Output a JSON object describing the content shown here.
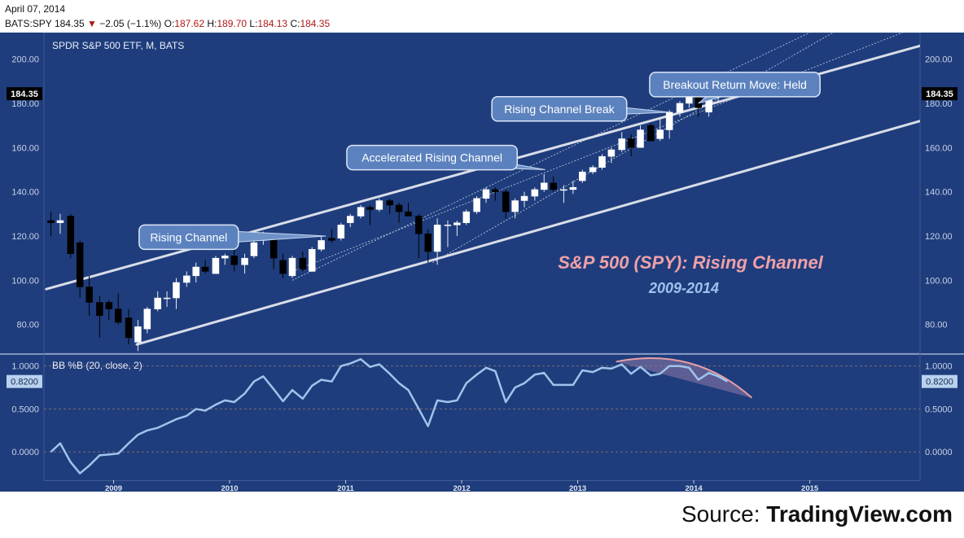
{
  "header": {
    "date": "April 07, 2014",
    "symbol": "BATS:SPY",
    "last": "184.35",
    "change": "−2.05 (−1.1%)",
    "open_label": "O:",
    "open": "187.62",
    "high_label": "H:",
    "high": "189.70",
    "low_label": "L:",
    "low": "184.13",
    "close_label": "C:",
    "close": "184.35"
  },
  "source": {
    "prefix": "Source: ",
    "name": "TradingView.com"
  },
  "colors": {
    "background": "#1f3d7c",
    "up_candle": "#ffffff",
    "down_candle": "#000000",
    "channel": "#d9dde8",
    "indicator_line": "#9fc4ec",
    "arc": "#e8a0a6",
    "title_pink": "#f0a0a8",
    "subtitle_blue": "#9cc3ee"
  },
  "chart_data": [
    {
      "type": "candlestick",
      "title": "SPDR S&P 500 ETF, M, BATS",
      "y_ticks": [
        "80.00",
        "100.00",
        "120.00",
        "140.00",
        "160.00",
        "180.00",
        "200.00"
      ],
      "ylim": [
        67,
        212
      ],
      "x_ticks": [
        "2009",
        "2010",
        "2011",
        "2012",
        "2013",
        "2014",
        "2015"
      ],
      "xlim": [
        2008.4,
        2015.95
      ],
      "last_price_label": "184.35",
      "candles": [
        {
          "t": 2008.46,
          "o": 127,
          "h": 131,
          "l": 120,
          "c": 126
        },
        {
          "t": 2008.54,
          "o": 126,
          "h": 130,
          "l": 121,
          "c": 127
        },
        {
          "t": 2008.63,
          "o": 129,
          "h": 130,
          "l": 110,
          "c": 112
        },
        {
          "t": 2008.71,
          "o": 117,
          "h": 118,
          "l": 92,
          "c": 97
        },
        {
          "t": 2008.79,
          "o": 97,
          "h": 102,
          "l": 84,
          "c": 90
        },
        {
          "t": 2008.88,
          "o": 90,
          "h": 93,
          "l": 74,
          "c": 84
        },
        {
          "t": 2008.96,
          "o": 90,
          "h": 91,
          "l": 82,
          "c": 87
        },
        {
          "t": 2009.04,
          "o": 87,
          "h": 94,
          "l": 80,
          "c": 81
        },
        {
          "t": 2009.13,
          "o": 83,
          "h": 87,
          "l": 71,
          "c": 74
        },
        {
          "t": 2009.21,
          "o": 72,
          "h": 82,
          "l": 68,
          "c": 79
        },
        {
          "t": 2009.29,
          "o": 78,
          "h": 88,
          "l": 76,
          "c": 87
        },
        {
          "t": 2009.38,
          "o": 87,
          "h": 95,
          "l": 86,
          "c": 92
        },
        {
          "t": 2009.46,
          "o": 92,
          "h": 95,
          "l": 88,
          "c": 92
        },
        {
          "t": 2009.54,
          "o": 92,
          "h": 101,
          "l": 87,
          "c": 99
        },
        {
          "t": 2009.63,
          "o": 99,
          "h": 104,
          "l": 97,
          "c": 102
        },
        {
          "t": 2009.71,
          "o": 102,
          "h": 108,
          "l": 99,
          "c": 106
        },
        {
          "t": 2009.79,
          "o": 106,
          "h": 109,
          "l": 103,
          "c": 104
        },
        {
          "t": 2009.88,
          "o": 103,
          "h": 111,
          "l": 103,
          "c": 110
        },
        {
          "t": 2009.96,
          "o": 110,
          "h": 112,
          "l": 107,
          "c": 111
        },
        {
          "t": 2010.04,
          "o": 111,
          "h": 115,
          "l": 104,
          "c": 107
        },
        {
          "t": 2010.13,
          "o": 107,
          "h": 112,
          "l": 103,
          "c": 110
        },
        {
          "t": 2010.21,
          "o": 111,
          "h": 118,
          "l": 110,
          "c": 117
        },
        {
          "t": 2010.29,
          "o": 118,
          "h": 122,
          "l": 116,
          "c": 119
        },
        {
          "t": 2010.38,
          "o": 119,
          "h": 121,
          "l": 105,
          "c": 110
        },
        {
          "t": 2010.46,
          "o": 109,
          "h": 112,
          "l": 101,
          "c": 103
        },
        {
          "t": 2010.54,
          "o": 102,
          "h": 111,
          "l": 101,
          "c": 110
        },
        {
          "t": 2010.63,
          "o": 110,
          "h": 113,
          "l": 104,
          "c": 105
        },
        {
          "t": 2010.71,
          "o": 104,
          "h": 115,
          "l": 104,
          "c": 114
        },
        {
          "t": 2010.79,
          "o": 114,
          "h": 120,
          "l": 113,
          "c": 118
        },
        {
          "t": 2010.88,
          "o": 119,
          "h": 123,
          "l": 117,
          "c": 118
        },
        {
          "t": 2010.96,
          "o": 119,
          "h": 126,
          "l": 118,
          "c": 125
        },
        {
          "t": 2011.04,
          "o": 126,
          "h": 130,
          "l": 124,
          "c": 129
        },
        {
          "t": 2011.13,
          "o": 129,
          "h": 134,
          "l": 128,
          "c": 133
        },
        {
          "t": 2011.21,
          "o": 133,
          "h": 134,
          "l": 125,
          "c": 132
        },
        {
          "t": 2011.29,
          "o": 132,
          "h": 137,
          "l": 131,
          "c": 136
        },
        {
          "t": 2011.38,
          "o": 136,
          "h": 137,
          "l": 130,
          "c": 134
        },
        {
          "t": 2011.46,
          "o": 134,
          "h": 135,
          "l": 126,
          "c": 131
        },
        {
          "t": 2011.54,
          "o": 131,
          "h": 135,
          "l": 129,
          "c": 129
        },
        {
          "t": 2011.63,
          "o": 129,
          "h": 130,
          "l": 110,
          "c": 121
        },
        {
          "t": 2011.71,
          "o": 121,
          "h": 123,
          "l": 108,
          "c": 113
        },
        {
          "t": 2011.79,
          "o": 113,
          "h": 128,
          "l": 107,
          "c": 125
        },
        {
          "t": 2011.88,
          "o": 125,
          "h": 127,
          "l": 115,
          "c": 125
        },
        {
          "t": 2011.96,
          "o": 125,
          "h": 127,
          "l": 120,
          "c": 126
        },
        {
          "t": 2012.04,
          "o": 126,
          "h": 132,
          "l": 125,
          "c": 131
        },
        {
          "t": 2012.13,
          "o": 131,
          "h": 138,
          "l": 130,
          "c": 137
        },
        {
          "t": 2012.21,
          "o": 137,
          "h": 142,
          "l": 135,
          "c": 141
        },
        {
          "t": 2012.29,
          "o": 141,
          "h": 142,
          "l": 136,
          "c": 140
        },
        {
          "t": 2012.38,
          "o": 140,
          "h": 141,
          "l": 128,
          "c": 131
        },
        {
          "t": 2012.46,
          "o": 131,
          "h": 137,
          "l": 128,
          "c": 136
        },
        {
          "t": 2012.54,
          "o": 136,
          "h": 140,
          "l": 133,
          "c": 138
        },
        {
          "t": 2012.63,
          "o": 138,
          "h": 142,
          "l": 136,
          "c": 141
        },
        {
          "t": 2012.71,
          "o": 141,
          "h": 148,
          "l": 140,
          "c": 144
        },
        {
          "t": 2012.79,
          "o": 144,
          "h": 147,
          "l": 140,
          "c": 141
        },
        {
          "t": 2012.88,
          "o": 141,
          "h": 143,
          "l": 135,
          "c": 141
        },
        {
          "t": 2012.96,
          "o": 141,
          "h": 145,
          "l": 139,
          "c": 142
        },
        {
          "t": 2013.04,
          "o": 145,
          "h": 150,
          "l": 144,
          "c": 149
        },
        {
          "t": 2013.13,
          "o": 149,
          "h": 152,
          "l": 148,
          "c": 151
        },
        {
          "t": 2013.21,
          "o": 151,
          "h": 157,
          "l": 150,
          "c": 156
        },
        {
          "t": 2013.29,
          "o": 156,
          "h": 160,
          "l": 153,
          "c": 159
        },
        {
          "t": 2013.38,
          "o": 159,
          "h": 167,
          "l": 158,
          "c": 164
        },
        {
          "t": 2013.46,
          "o": 164,
          "h": 166,
          "l": 156,
          "c": 160
        },
        {
          "t": 2013.54,
          "o": 160,
          "h": 170,
          "l": 160,
          "c": 168
        },
        {
          "t": 2013.63,
          "o": 170,
          "h": 171,
          "l": 163,
          "c": 163
        },
        {
          "t": 2013.71,
          "o": 164,
          "h": 173,
          "l": 163,
          "c": 168
        },
        {
          "t": 2013.79,
          "o": 168,
          "h": 177,
          "l": 164,
          "c": 176
        },
        {
          "t": 2013.88,
          "o": 176,
          "h": 181,
          "l": 174,
          "c": 180
        },
        {
          "t": 2013.96,
          "o": 180,
          "h": 185,
          "l": 178,
          "c": 184
        },
        {
          "t": 2014.04,
          "o": 183,
          "h": 185,
          "l": 174,
          "c": 178
        },
        {
          "t": 2014.13,
          "o": 176,
          "h": 186,
          "l": 174,
          "c": 186
        },
        {
          "t": 2014.21,
          "o": 186,
          "h": 189,
          "l": 181,
          "c": 188
        },
        {
          "t": 2014.29,
          "o": 188,
          "h": 190,
          "l": 184,
          "c": 184
        }
      ],
      "channel_lines": [
        {
          "name": "upper",
          "from": [
            2008.42,
            96
          ],
          "to": [
            2015.95,
            206
          ]
        },
        {
          "name": "lower",
          "from": [
            2009.2,
            71
          ],
          "to": [
            2015.95,
            172
          ]
        }
      ],
      "dotted_lines": [
        {
          "from": [
            2010.54,
            100
          ],
          "to": [
            2015.0,
            212
          ]
        },
        {
          "from": [
            2010.54,
            104
          ],
          "to": [
            2015.8,
            212
          ]
        },
        {
          "from": [
            2011.75,
            108
          ],
          "to": [
            2015.2,
            212
          ]
        }
      ],
      "annotations": [
        {
          "text": "Rising Channel",
          "box": [
            2009.22,
            125
          ],
          "target": [
            2010.83,
            120
          ]
        },
        {
          "text": "Accelerated Rising Channel",
          "box": [
            2011.01,
            161
          ],
          "target": [
            2012.72,
            150
          ]
        },
        {
          "text": "Rising Channel Break",
          "box": [
            2012.26,
            183
          ],
          "target": [
            2013.79,
            176
          ]
        },
        {
          "text": "Breakout Return Move: Held",
          "box": [
            2013.62,
            194
          ],
          "target": [
            2014.04,
            180
          ]
        }
      ],
      "overlay_title": "S&P 500 (SPY): Rising Channel",
      "overlay_subtitle": "2009-2014"
    },
    {
      "type": "line",
      "title": "BB %B (20, close, 2)",
      "y_ticks": [
        "0.0000",
        "0.5000",
        "1.0000"
      ],
      "ylim": [
        -0.33,
        1.13
      ],
      "last_value_label": "0.8200",
      "series": [
        {
          "x": [
            2008.46,
            2008.54,
            2008.63,
            2008.71,
            2008.79,
            2008.88,
            2008.96,
            2009.04,
            2009.13,
            2009.21,
            2009.29,
            2009.38,
            2009.46,
            2009.54,
            2009.63,
            2009.71,
            2009.79,
            2009.88,
            2009.96,
            2010.04,
            2010.13,
            2010.21,
            2010.29,
            2010.38,
            2010.46,
            2010.54,
            2010.63,
            2010.71,
            2010.79,
            2010.88,
            2010.96,
            2011.04,
            2011.13,
            2011.21,
            2011.29,
            2011.38,
            2011.46,
            2011.54,
            2011.63,
            2011.71,
            2011.79,
            2011.88,
            2011.96,
            2012.04,
            2012.13,
            2012.21,
            2012.29,
            2012.38,
            2012.46,
            2012.54,
            2012.63,
            2012.71,
            2012.79,
            2012.88,
            2012.96,
            2013.04,
            2013.13,
            2013.21,
            2013.29,
            2013.38,
            2013.46,
            2013.54,
            2013.63,
            2013.71,
            2013.79,
            2013.88,
            2013.96,
            2014.04,
            2014.13,
            2014.21,
            2014.29
          ],
          "values": [
            0.0,
            0.1,
            -0.12,
            -0.25,
            -0.16,
            -0.04,
            -0.03,
            -0.02,
            0.1,
            0.2,
            0.25,
            0.28,
            0.33,
            0.38,
            0.42,
            0.5,
            0.48,
            0.55,
            0.6,
            0.58,
            0.68,
            0.82,
            0.88,
            0.73,
            0.59,
            0.72,
            0.62,
            0.77,
            0.84,
            0.82,
            1.0,
            1.03,
            1.08,
            0.99,
            1.02,
            0.91,
            0.8,
            0.72,
            0.5,
            0.3,
            0.6,
            0.58,
            0.6,
            0.8,
            0.9,
            0.98,
            0.94,
            0.58,
            0.75,
            0.8,
            0.9,
            0.92,
            0.78,
            0.78,
            0.78,
            0.95,
            0.93,
            0.98,
            0.97,
            1.02,
            0.91,
            0.99,
            0.89,
            0.91,
            1.0,
            1.0,
            0.98,
            0.84,
            0.92,
            0.88,
            0.82
          ]
        }
      ],
      "arc": {
        "from": [
          2013.33,
          1.05
        ],
        "peak": [
          2013.75,
          1.06
        ],
        "to": [
          2014.5,
          0.63
        ]
      }
    }
  ]
}
